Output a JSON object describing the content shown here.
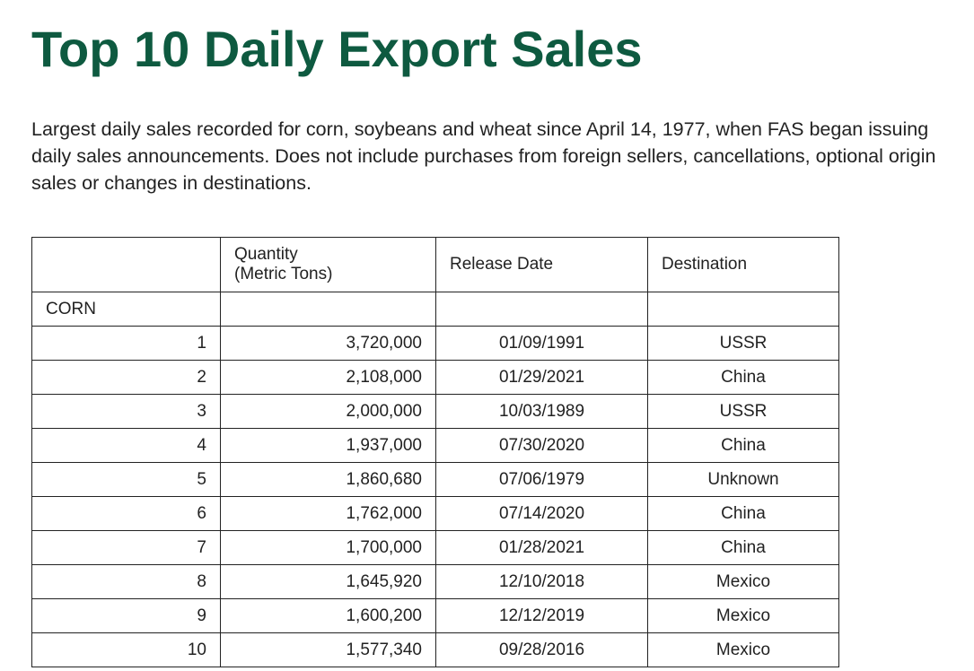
{
  "title": "Top 10 Daily Export Sales",
  "intro": "Largest daily sales recorded for corn, soybeans and wheat since April 14, 1977, when FAS began issuing daily sales announcements. Does not include purchases from foreign sellers, cancellations, optional origin sales or changes in destinations.",
  "table": {
    "headers": {
      "rank": "",
      "quantity_line1": "Quantity",
      "quantity_line2": "(Metric Tons)",
      "release_date": "Release Date",
      "destination": "Destination"
    },
    "sections": [
      {
        "name": "CORN",
        "rows": [
          {
            "rank": "1",
            "quantity": "3,720,000",
            "date": "01/09/1991",
            "destination": "USSR"
          },
          {
            "rank": "2",
            "quantity": "2,108,000",
            "date": "01/29/2021",
            "destination": "China"
          },
          {
            "rank": "3",
            "quantity": "2,000,000",
            "date": "10/03/1989",
            "destination": "USSR"
          },
          {
            "rank": "4",
            "quantity": "1,937,000",
            "date": "07/30/2020",
            "destination": "China"
          },
          {
            "rank": "5",
            "quantity": "1,860,680",
            "date": "07/06/1979",
            "destination": "Unknown"
          },
          {
            "rank": "6",
            "quantity": "1,762,000",
            "date": "07/14/2020",
            "destination": "China"
          },
          {
            "rank": "7",
            "quantity": "1,700,000",
            "date": "01/28/2021",
            "destination": "China"
          },
          {
            "rank": "8",
            "quantity": "1,645,920",
            "date": "12/10/2018",
            "destination": "Mexico"
          },
          {
            "rank": "9",
            "quantity": "1,600,200",
            "date": "12/12/2019",
            "destination": "Mexico"
          },
          {
            "rank": "10",
            "quantity": "1,577,340",
            "date": "09/28/2016",
            "destination": "Mexico"
          }
        ]
      }
    ]
  }
}
